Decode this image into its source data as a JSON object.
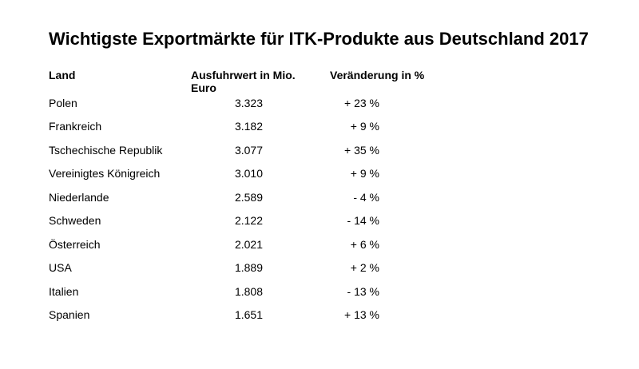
{
  "chart_data": {
    "type": "table",
    "title": "Wichtigste Exportmärkte für ITK-Produkte aus Deutschland 2017",
    "columns": [
      "Land",
      "Ausfuhrwert in Mio. Euro",
      "Veränderung in %"
    ],
    "rows": [
      {
        "land": "Polen",
        "value": "3.323",
        "change": "+ 23 %"
      },
      {
        "land": "Frankreich",
        "value": "3.182",
        "change": "+ 9 %"
      },
      {
        "land": "Tschechische Republik",
        "value": "3.077",
        "change": "+ 35 %"
      },
      {
        "land": "Vereinigtes Königreich",
        "value": "3.010",
        "change": "+ 9 %"
      },
      {
        "land": "Niederlande",
        "value": "2.589",
        "change": "- 4 %"
      },
      {
        "land": "Schweden",
        "value": "2.122",
        "change": "- 14 %"
      },
      {
        "land": "Österreich",
        "value": "2.021",
        "change": "+ 6 %"
      },
      {
        "land": "USA",
        "value": "1.889",
        "change": "+ 2 %"
      },
      {
        "land": "Italien",
        "value": "1.808",
        "change": "- 13 %"
      },
      {
        "land": "Spanien",
        "value": "1.651",
        "change": "+ 13 %"
      }
    ]
  }
}
